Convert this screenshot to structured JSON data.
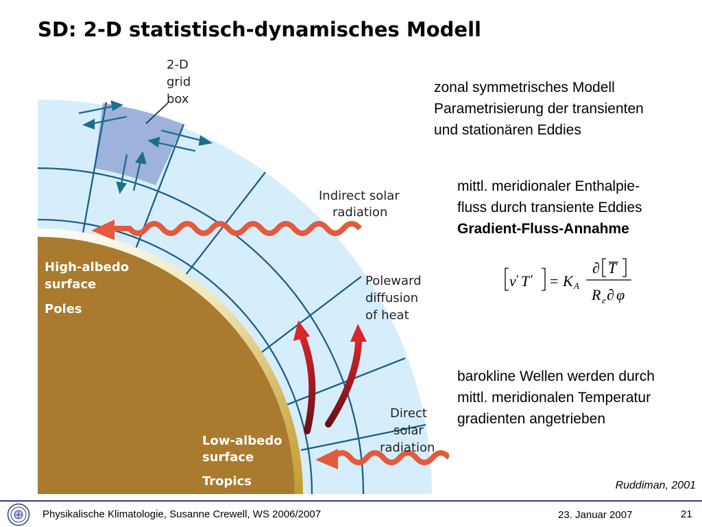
{
  "slide": {
    "title": "SD: 2-D statistisch-dynamisches Modell",
    "bullets": {
      "zonal_line1": "zonal symmetrisches Modell",
      "zonal_line2": "Parametrisierung der transienten",
      "zonal_line3": "und stationären Eddies",
      "enthalpy_line1": "mittl. meridionaler Enthalpie-",
      "enthalpy_line2": "fluss durch transiente Eddies",
      "gradient_flux": "Gradient-Fluss-Annahme",
      "baroclinic_line1": "barokline Wellen werden durch",
      "baroclinic_line2": "mittl. meridionalen Temperatur",
      "baroclinic_line3": "gradienten angetrieben"
    },
    "citation": "Ruddiman, 2001"
  },
  "figure": {
    "label_grid_1": "2-D",
    "label_grid_2": "grid",
    "label_grid_3": "box",
    "indirect_1": "Indirect solar",
    "indirect_2": "radiation",
    "poleward_1": "Poleward",
    "poleward_2": "diffusion",
    "poleward_3": "of heat",
    "direct_1": "Direct",
    "direct_2": "solar",
    "direct_3": "radiation",
    "high_albedo_1": "High-albedo",
    "high_albedo_2": "surface",
    "poles": "Poles",
    "low_albedo_1": "Low-albedo",
    "low_albedo_2": "surface",
    "tropics": "Tropics"
  },
  "formula": {
    "lhs_v": "v",
    "lhs_prime1": "′",
    "lhs_T": "T",
    "lhs_prime2": "′",
    "equals": "=",
    "K": "K",
    "K_sub": "A",
    "partial_num": "∂",
    "T_bar": "T",
    "R": "R",
    "R_sub": "e",
    "partial_den": "∂",
    "phi": "φ"
  },
  "footer": {
    "left": "Physikalische Klimatologie, Susanne Crewell,  WS 2006/2007",
    "date": "23. Januar 2007",
    "page": "21"
  },
  "colors": {
    "atmosphere": "#d6eefb",
    "grid_line": "#1d5c8c",
    "grid_box": "#9eb3dc",
    "earth": "#aa7a2e",
    "wavy_arrow": "#e35a3d",
    "poleward_arrow": "#a2141e",
    "footer_rule": "#2b3a8c"
  }
}
